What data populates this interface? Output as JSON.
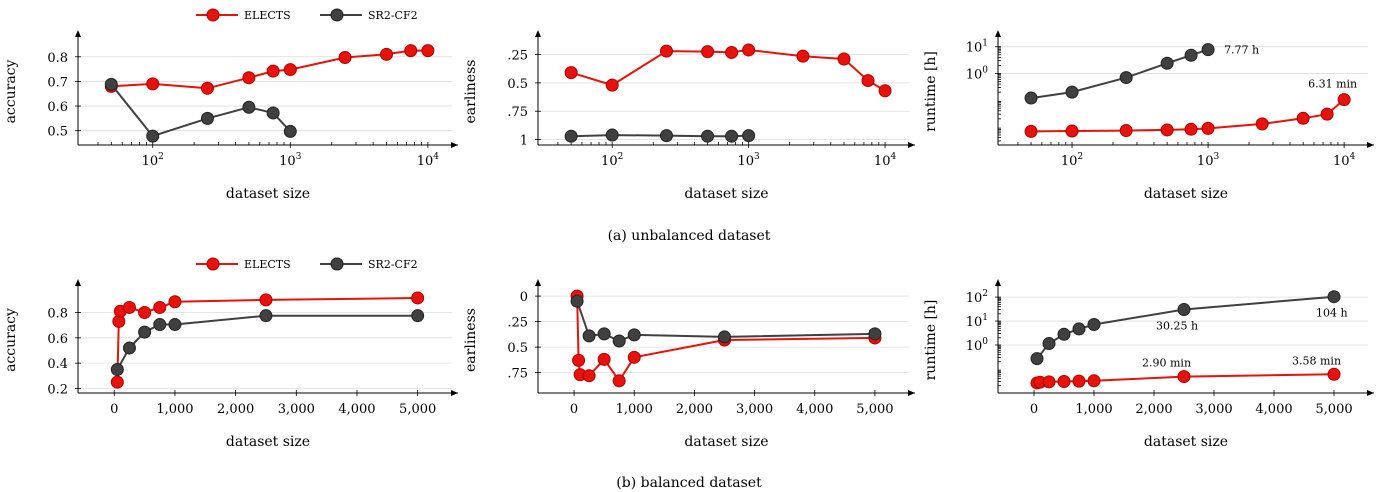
{
  "colors": {
    "electects": "#e8120c",
    "sr2cf2": "#404040"
  },
  "legend": [
    {
      "label": "ELECTS",
      "color": "#e8120c"
    },
    {
      "label": "SR2-CF2",
      "color": "#404040"
    }
  ],
  "captions": {
    "a": "(a) unbalanced dataset",
    "b": "(b) balanced dataset"
  },
  "chart_data": [
    {
      "id": "a1",
      "type": "line",
      "xscale": "log",
      "xlim": [
        35,
        14000
      ],
      "ylim": [
        0.45,
        0.86
      ],
      "yticks": [
        0.5,
        0.6,
        0.7,
        0.8
      ],
      "yticklabels": [
        "0.5",
        "0.6",
        "0.7",
        "0.8"
      ],
      "xticks": [
        100,
        1000,
        10000
      ],
      "xticklabels": [
        "10^2",
        "10^3",
        "10^4"
      ],
      "xlabel": "dataset size",
      "ylabel": "accuracy",
      "grid": true,
      "series": [
        {
          "name": "ELECTS",
          "x": [
            50,
            100,
            250,
            500,
            750,
            1000,
            2500,
            5000,
            7500,
            10000
          ],
          "y": [
            0.68,
            0.69,
            0.672,
            0.715,
            0.742,
            0.748,
            0.797,
            0.81,
            0.825,
            0.825
          ]
        },
        {
          "name": "SR2-CF2",
          "x": [
            50,
            100,
            250,
            500,
            750,
            1000
          ],
          "y": [
            0.688,
            0.478,
            0.55,
            0.595,
            0.572,
            0.497
          ]
        }
      ]
    },
    {
      "id": "a2",
      "type": "line",
      "xscale": "log",
      "xlim": [
        35,
        14000
      ],
      "ylim": [
        0.14,
        1.03
      ],
      "yreversed": true,
      "yticks": [
        0.25,
        0.5,
        0.75,
        1
      ],
      "yticklabels": [
        ".25",
        "0.5",
        ".75",
        "1"
      ],
      "xticks": [
        100,
        1000,
        10000
      ],
      "xticklabels": [
        "10^2",
        "10^3",
        "10^4"
      ],
      "xlabel": "dataset size",
      "ylabel": "earliness",
      "grid": true,
      "series": [
        {
          "name": "ELECTS",
          "x": [
            50,
            100,
            250,
            500,
            750,
            1000,
            2500,
            5000,
            7500,
            10000
          ],
          "y": [
            0.41,
            0.52,
            0.22,
            0.225,
            0.232,
            0.21,
            0.265,
            0.29,
            0.48,
            0.57
          ]
        },
        {
          "name": "SR2-CF2",
          "x": [
            50,
            100,
            250,
            500,
            750,
            1000
          ],
          "y": [
            0.97,
            0.96,
            0.965,
            0.97,
            0.97,
            0.965
          ]
        }
      ]
    },
    {
      "id": "a3",
      "type": "line",
      "xscale": "log",
      "yscale": "log",
      "xlim": [
        35,
        14000
      ],
      "ylim": [
        0.0025,
        15
      ],
      "yticks": [
        1,
        10
      ],
      "yticklabels": [
        "10^0",
        "10^1"
      ],
      "xticks": [
        100,
        1000,
        10000
      ],
      "xticklabels": [
        "10^2",
        "10^3",
        "10^4"
      ],
      "xlabel": "dataset size",
      "ylabel": "runtime [h]",
      "grid": true,
      "series": [
        {
          "name": "ELECTS",
          "x": [
            50,
            100,
            250,
            500,
            750,
            1000,
            2500,
            5000,
            7500,
            10000
          ],
          "y": [
            0.0068,
            0.007,
            0.0073,
            0.0077,
            0.0082,
            0.0088,
            0.013,
            0.021,
            0.03,
            0.105
          ]
        },
        {
          "name": "SR2-CF2",
          "x": [
            50,
            100,
            250,
            500,
            750,
            1000
          ],
          "y": [
            0.12,
            0.2,
            0.7,
            2.4,
            4.8,
            7.77
          ]
        }
      ],
      "annotations": [
        {
          "text": "7.77 h",
          "x": 1000,
          "y": 7.77,
          "dx": 16,
          "dy": 4
        },
        {
          "text": "6.31 min",
          "x": 10000,
          "y": 0.105,
          "dx": -36,
          "dy": -12
        }
      ]
    },
    {
      "id": "b1",
      "type": "line",
      "xscale": "linear",
      "xlim": [
        -400,
        5500
      ],
      "ylim": [
        0.18,
        0.97
      ],
      "yticks": [
        0.2,
        0.4,
        0.6,
        0.8
      ],
      "yticklabels": [
        "0.2",
        "0.4",
        "0.6",
        "0.8"
      ],
      "xticks": [
        0,
        1000,
        2000,
        3000,
        4000,
        5000
      ],
      "xticklabels": [
        "0",
        "1,000",
        "2,000",
        "3,000",
        "4,000",
        "5,000"
      ],
      "xlabel": "dataset size",
      "ylabel": "accuracy",
      "grid": true,
      "series": [
        {
          "name": "ELECTS",
          "x": [
            50,
            75,
            100,
            250,
            500,
            750,
            1000,
            2500,
            5000
          ],
          "y": [
            0.25,
            0.73,
            0.81,
            0.84,
            0.8,
            0.84,
            0.885,
            0.9,
            0.915
          ]
        },
        {
          "name": "SR2-CF2",
          "x": [
            50,
            250,
            500,
            750,
            1000,
            2500,
            5000
          ],
          "y": [
            0.35,
            0.52,
            0.645,
            0.705,
            0.705,
            0.775,
            0.775
          ]
        }
      ]
    },
    {
      "id": "b2",
      "type": "line",
      "xscale": "linear",
      "xlim": [
        -400,
        5500
      ],
      "ylim": [
        -0.05,
        0.93
      ],
      "yreversed": true,
      "yticks": [
        0,
        0.25,
        0.5,
        0.75
      ],
      "yticklabels": [
        "0",
        ".25",
        "0.5",
        ".75"
      ],
      "xticks": [
        0,
        1000,
        2000,
        3000,
        4000,
        5000
      ],
      "xticklabels": [
        "0",
        "1,000",
        "2,000",
        "3,000",
        "4,000",
        "5,000"
      ],
      "xlabel": "dataset size",
      "ylabel": "earliness",
      "grid": true,
      "series": [
        {
          "name": "ELECTS",
          "x": [
            50,
            75,
            100,
            250,
            500,
            750,
            1000,
            2500,
            5000
          ],
          "y": [
            0.0,
            0.63,
            0.77,
            0.78,
            0.62,
            0.83,
            0.6,
            0.43,
            0.41
          ]
        },
        {
          "name": "SR2-CF2",
          "x": [
            50,
            250,
            500,
            750,
            1000,
            2500,
            5000
          ],
          "y": [
            0.05,
            0.39,
            0.37,
            0.44,
            0.38,
            0.4,
            0.37
          ]
        }
      ]
    },
    {
      "id": "b3",
      "type": "line",
      "xscale": "linear",
      "yscale": "log",
      "xlim": [
        -400,
        5500
      ],
      "ylim": [
        0.012,
        180
      ],
      "yticks": [
        1,
        10,
        100
      ],
      "yticklabels": [
        "10^0",
        "10^1",
        "10^2"
      ],
      "xticks": [
        0,
        1000,
        2000,
        3000,
        4000,
        5000
      ],
      "xticklabels": [
        "0",
        "1,000",
        "2,000",
        "3,000",
        "4,000",
        "5,000"
      ],
      "xlabel": "dataset size",
      "ylabel": "runtime [h]",
      "grid": true,
      "series": [
        {
          "name": "ELECTS",
          "x": [
            50,
            100,
            250,
            500,
            750,
            1000,
            2500,
            5000
          ],
          "y": [
            0.026,
            0.028,
            0.029,
            0.03,
            0.031,
            0.032,
            0.048,
            0.06
          ]
        },
        {
          "name": "SR2-CF2",
          "x": [
            50,
            250,
            500,
            750,
            1000,
            2500,
            5000
          ],
          "y": [
            0.27,
            1.15,
            2.8,
            4.7,
            7.2,
            30.25,
            104
          ]
        }
      ],
      "annotations": [
        {
          "text": "30.25 h",
          "x": 2500,
          "y": 30.25,
          "dx": -28,
          "dy": 20
        },
        {
          "text": "104 h",
          "x": 5000,
          "y": 104,
          "dx": -18,
          "dy": 20
        },
        {
          "text": "2.90 min",
          "x": 2500,
          "y": 0.048,
          "dx": -42,
          "dy": -10
        },
        {
          "text": "3.58 min",
          "x": 5000,
          "y": 0.06,
          "dx": -42,
          "dy": -10
        }
      ]
    }
  ]
}
